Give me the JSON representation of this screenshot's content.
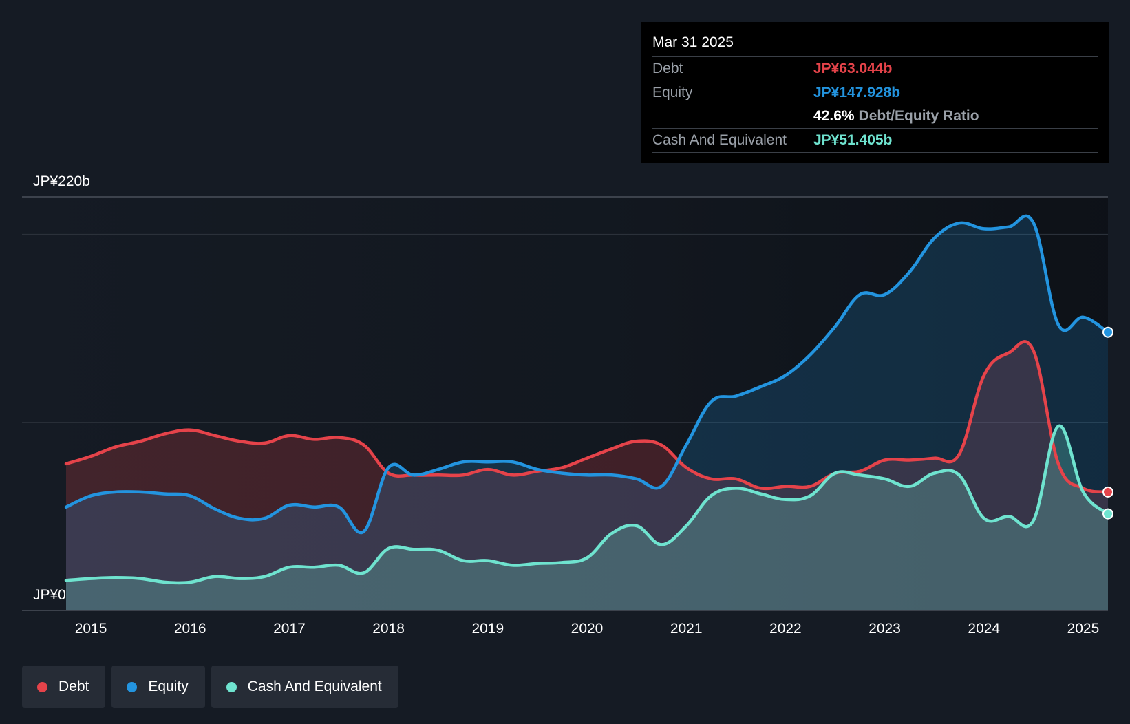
{
  "tooltip": {
    "date": "Mar 31 2025",
    "debt_label": "Debt",
    "debt_value": "JP¥63.044b",
    "equity_label": "Equity",
    "equity_value": "JP¥147.928b",
    "ratio_value": "42.6%",
    "ratio_label": "Debt/Equity Ratio",
    "cash_label": "Cash And Equivalent",
    "cash_value": "JP¥51.405b"
  },
  "legend": [
    {
      "label": "Debt",
      "color": "#e5434a"
    },
    {
      "label": "Equity",
      "color": "#2394df"
    },
    {
      "label": "Cash And Equivalent",
      "color": "#6fe3cf"
    }
  ],
  "chart_data": {
    "type": "area",
    "y_top_label": "JP¥220b",
    "y_bottom_label": "JP¥0",
    "ylim": [
      0,
      220
    ],
    "xlim": [
      2014.75,
      2025.25
    ],
    "x_ticks": [
      "2015",
      "2016",
      "2017",
      "2018",
      "2019",
      "2020",
      "2021",
      "2022",
      "2023",
      "2024",
      "2025"
    ],
    "grid": true,
    "legend_position": "bottom-left",
    "colors": {
      "debt": "#e5434a",
      "equity": "#2394df",
      "cash": "#6fe3cf"
    },
    "series": [
      {
        "name": "Debt",
        "key": "debt",
        "x": [
          2014.75,
          2015.0,
          2015.25,
          2015.5,
          2015.75,
          2016.0,
          2016.25,
          2016.5,
          2016.75,
          2017.0,
          2017.25,
          2017.5,
          2017.75,
          2018.0,
          2018.25,
          2018.5,
          2018.75,
          2019.0,
          2019.25,
          2019.5,
          2019.75,
          2020.0,
          2020.25,
          2020.5,
          2020.75,
          2021.0,
          2021.25,
          2021.5,
          2021.75,
          2022.0,
          2022.25,
          2022.5,
          2022.75,
          2023.0,
          2023.25,
          2023.5,
          2023.75,
          2024.0,
          2024.25,
          2024.5,
          2024.75,
          2025.0,
          2025.25
        ],
        "values": [
          78,
          82,
          87,
          90,
          94,
          96,
          93,
          90,
          89,
          93,
          91,
          92,
          88,
          73,
          72,
          72,
          72,
          75,
          72,
          74,
          76,
          81,
          86,
          90,
          88,
          76,
          70,
          70,
          65,
          66,
          66,
          73,
          74,
          80,
          80,
          81,
          83,
          125,
          137,
          138,
          78,
          65,
          63
        ]
      },
      {
        "name": "Equity",
        "key": "equity",
        "x": [
          2014.75,
          2015.0,
          2015.25,
          2015.5,
          2015.75,
          2016.0,
          2016.25,
          2016.5,
          2016.75,
          2017.0,
          2017.25,
          2017.5,
          2017.75,
          2018.0,
          2018.25,
          2018.5,
          2018.75,
          2019.0,
          2019.25,
          2019.5,
          2019.75,
          2020.0,
          2020.25,
          2020.5,
          2020.75,
          2021.0,
          2021.25,
          2021.5,
          2021.75,
          2022.0,
          2022.25,
          2022.5,
          2022.75,
          2023.0,
          2023.25,
          2023.5,
          2023.75,
          2024.0,
          2024.25,
          2024.5,
          2024.75,
          2025.0,
          2025.25
        ],
        "values": [
          55,
          61,
          63,
          63,
          62,
          61,
          54,
          49,
          49,
          56,
          55,
          55,
          42,
          76,
          72,
          75,
          79,
          79,
          79,
          75,
          73,
          72,
          72,
          70,
          66,
          88,
          111,
          114,
          119,
          125,
          136,
          151,
          168,
          168,
          180,
          198,
          206,
          203,
          204,
          206,
          152,
          156,
          148
        ]
      },
      {
        "name": "Cash And Equivalent",
        "key": "cash",
        "x": [
          2014.75,
          2015.0,
          2015.25,
          2015.5,
          2015.75,
          2016.0,
          2016.25,
          2016.5,
          2016.75,
          2017.0,
          2017.25,
          2017.5,
          2017.75,
          2018.0,
          2018.25,
          2018.5,
          2018.75,
          2019.0,
          2019.25,
          2019.5,
          2019.75,
          2020.0,
          2020.25,
          2020.5,
          2020.75,
          2021.0,
          2021.25,
          2021.5,
          2021.75,
          2022.0,
          2022.25,
          2022.5,
          2022.75,
          2023.0,
          2023.25,
          2023.5,
          2023.75,
          2024.0,
          2024.25,
          2024.5,
          2024.75,
          2025.0,
          2025.25
        ],
        "values": [
          16,
          17,
          17.5,
          17,
          15,
          15,
          18,
          17,
          18,
          23,
          23,
          24,
          20,
          33,
          32.5,
          32,
          26.5,
          26.5,
          24,
          25,
          25.5,
          28,
          41,
          45,
          35,
          45,
          61,
          65,
          62,
          59,
          61,
          73,
          72,
          70,
          66,
          73,
          72,
          49,
          50,
          48,
          98,
          63,
          51.405
        ]
      }
    ]
  }
}
